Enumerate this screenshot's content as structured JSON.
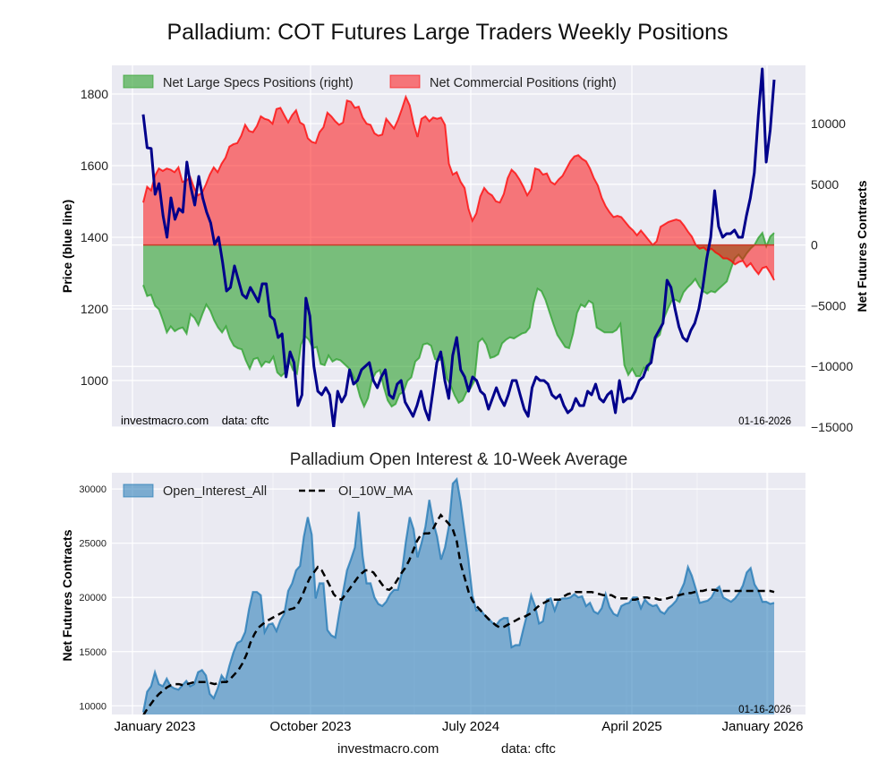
{
  "figure": {
    "title": "Palladium: COT Futures Large Traders Weekly Positions",
    "footer_site": "investmacro.com",
    "footer_data": "data: cftc"
  },
  "chart_data": [
    {
      "type": "area",
      "title": "Palladium: COT Futures Large Traders Weekly Positions",
      "ylabel_left": "Price (blue line)",
      "ylabel_right": "Net Futures Contracts",
      "ylim_left": [
        870,
        1880
      ],
      "ylim_right": [
        -15000,
        14800
      ],
      "yticks_left": [
        "1000",
        "1200",
        "1400",
        "1600",
        "1800"
      ],
      "yticks_right": [
        "−15000",
        "−10000",
        "−5000",
        "0",
        "5000",
        "10000"
      ],
      "ytick_values_left": [
        1000,
        1200,
        1400,
        1600,
        1800
      ],
      "ytick_values_right": [
        -15000,
        -10000,
        -5000,
        0,
        5000,
        10000
      ],
      "xlim": [
        0,
        160
      ],
      "grid": true,
      "legend_position": "top-left",
      "watermark_left": "investmacro.com    data: cftc",
      "watermark_right": "01-16-2026",
      "series": [
        {
          "name": "Net Large Specs Positions (right)",
          "kind": "fill",
          "color": "#2ca02c",
          "axis": "right",
          "values": [
            -3300,
            -4200,
            -4100,
            -5000,
            -5300,
            -6200,
            -7200,
            -6700,
            -7100,
            -6900,
            -6800,
            -7300,
            -5700,
            -6000,
            -6600,
            -5700,
            -4900,
            -5400,
            -6200,
            -6800,
            -7200,
            -6700,
            -7700,
            -8300,
            -8500,
            -8600,
            -9500,
            -10200,
            -9400,
            -9300,
            -10000,
            -9600,
            -9700,
            -9200,
            -10500,
            -10800,
            -10500,
            -9500,
            -10300,
            -10600,
            -8200,
            -7500,
            -7800,
            -8500,
            -8400,
            -9800,
            -9900,
            -9100,
            -9600,
            -9400,
            -9500,
            -9800,
            -10100,
            -10600,
            -11300,
            -12500,
            -13300,
            -12600,
            -11100,
            -10500,
            -10300,
            -11700,
            -12800,
            -13300,
            -13100,
            -12300,
            -12100,
            -11200,
            -10900,
            -9600,
            -9300,
            -8200,
            -8100,
            -8300,
            -9400,
            -9500,
            -9300,
            -11000,
            -11600,
            -12400,
            -13000,
            -12800,
            -12100,
            -11800,
            -11200,
            -8000,
            -7700,
            -8200,
            -9300,
            -9200,
            -9000,
            -8100,
            -7800,
            -7600,
            -7700,
            -7500,
            -7300,
            -7200,
            -6800,
            -4800,
            -3600,
            -3800,
            -4500,
            -5500,
            -6500,
            -7400,
            -7900,
            -8400,
            -8500,
            -7300,
            -5600,
            -4900,
            -5100,
            -4600,
            -4800,
            -6800,
            -7000,
            -7200,
            -7200,
            -7200,
            -7000,
            -6500,
            -9900,
            -10700,
            -10200,
            -10800,
            -10800,
            -10100,
            -10300,
            -8700,
            -7700,
            -7400,
            -6100,
            -5300,
            -4600,
            -4500,
            -4700,
            -3900,
            -3500,
            -3200,
            -2800,
            -3400,
            -3800,
            -4000,
            -3800,
            -3900,
            -3600,
            -3300,
            -3000,
            -2000,
            -1100,
            -800,
            -1200,
            -700,
            -300,
            0,
            600,
            1000,
            -100,
            700,
            1000
          ]
        },
        {
          "name": "Net Commercial Positions (right)",
          "kind": "fill",
          "color": "#ff0000",
          "axis": "right",
          "values": [
            3500,
            4800,
            4500,
            5700,
            6300,
            6100,
            6300,
            6200,
            6000,
            6400,
            5200,
            5300,
            5600,
            4700,
            4100,
            4300,
            5000,
            5800,
            6400,
            6000,
            6700,
            7200,
            8100,
            8300,
            8400,
            9000,
            9900,
            9400,
            9300,
            9800,
            10600,
            10400,
            10300,
            10000,
            11200,
            11300,
            10700,
            10100,
            10700,
            11100,
            10100,
            9900,
            8800,
            8500,
            8400,
            9300,
            9700,
            10900,
            10600,
            10200,
            9900,
            10100,
            11900,
            11800,
            11300,
            11400,
            10500,
            10000,
            9900,
            9200,
            9000,
            9100,
            10400,
            10000,
            9600,
            10300,
            11200,
            12200,
            11500,
            10000,
            8900,
            10400,
            10600,
            10200,
            10500,
            10400,
            10500,
            9900,
            6700,
            5800,
            6000,
            5200,
            4700,
            3000,
            2000,
            2600,
            4000,
            4700,
            4300,
            4100,
            3600,
            3500,
            4200,
            5500,
            6200,
            5900,
            5400,
            4800,
            4100,
            4600,
            6300,
            6200,
            5800,
            5900,
            5200,
            5000,
            5400,
            5700,
            6300,
            6900,
            7300,
            7400,
            7100,
            6900,
            6300,
            5500,
            4900,
            3900,
            3200,
            2700,
            2300,
            2400,
            2300,
            1900,
            1500,
            1200,
            800,
            1200,
            800,
            400,
            0,
            300,
            1500,
            1700,
            1900,
            2000,
            2100,
            2000,
            1600,
            1100,
            700,
            0,
            -300,
            -200,
            -500,
            -300,
            -600,
            -800,
            -1100,
            -1100,
            -1300,
            -1600,
            -1400,
            -1300,
            -1800,
            -1500,
            -2000,
            -2400,
            -1900,
            -1800,
            -2300,
            -2900
          ]
        },
        {
          "name": "Price (blue line)",
          "kind": "line",
          "color": "#00008b",
          "axis": "left",
          "values": [
            1743,
            1650,
            1648,
            1520,
            1550,
            1460,
            1400,
            1510,
            1450,
            1480,
            1470,
            1610,
            1540,
            1490,
            1570,
            1510,
            1470,
            1440,
            1380,
            1400,
            1330,
            1250,
            1260,
            1320,
            1280,
            1240,
            1230,
            1260,
            1240,
            1220,
            1270,
            1270,
            1180,
            1170,
            1120,
            1130,
            1010,
            1080,
            1050,
            930,
            960,
            1230,
            1180,
            1040,
            970,
            960,
            980,
            960,
            870,
            970,
            940,
            960,
            1030,
            990,
            1000,
            1030,
            1040,
            1050,
            1000,
            980,
            1010,
            1030,
            960,
            950,
            990,
            1000,
            940,
            920,
            900,
            930,
            970,
            920,
            890,
            970,
            1050,
            1080,
            1000,
            950,
            1070,
            1120,
            1030,
            1010,
            970,
            1010,
            1000,
            970,
            960,
            920,
            950,
            980,
            950,
            930,
            960,
            1000,
            1000,
            960,
            920,
            900,
            980,
            1010,
            1000,
            1000,
            990,
            960,
            950,
            960,
            930,
            910,
            920,
            950,
            930,
            930,
            970,
            960,
            990,
            950,
            940,
            960,
            970,
            910,
            1000,
            940,
            950,
            950,
            970,
            1000,
            1010,
            1040,
            1050,
            1120,
            1140,
            1160,
            1280,
            1260,
            1200,
            1150,
            1120,
            1110,
            1140,
            1160,
            1200,
            1260,
            1340,
            1400,
            1530,
            1430,
            1400,
            1410,
            1410,
            1420,
            1400,
            1400,
            1460,
            1510,
            1580,
            1740,
            1870,
            1610,
            1700,
            1840
          ]
        }
      ]
    },
    {
      "type": "area",
      "title": "Palladium Open Interest & 10-Week Average",
      "ylabel": "Net Futures Contracts",
      "ylim": [
        9200,
        31500
      ],
      "yticks": [
        "10000",
        "15000",
        "20000",
        "25000",
        "30000"
      ],
      "ytick_values": [
        10000,
        15000,
        20000,
        25000,
        30000
      ],
      "xticks": [
        "January 2023",
        "October 2023",
        "July 2024",
        "April 2025",
        "January 2026"
      ],
      "xtick_positions": [
        0,
        40,
        80,
        120,
        160
      ],
      "xlim": [
        0,
        160
      ],
      "grid": true,
      "legend_position": "top-left",
      "watermark_right": "01-16-2026",
      "series": [
        {
          "name": "Open_Interest_All",
          "kind": "fill",
          "color": "#1f77b4",
          "values": [
            9400,
            11300,
            11800,
            13100,
            12000,
            11800,
            12500,
            11800,
            11600,
            11500,
            11900,
            12300,
            11800,
            12000,
            13100,
            13300,
            12800,
            11100,
            10700,
            11600,
            12800,
            12300,
            13700,
            14900,
            15800,
            16000,
            16800,
            18900,
            20500,
            20500,
            20200,
            16800,
            17500,
            17600,
            16900,
            17900,
            18500,
            20600,
            21300,
            22500,
            22900,
            25600,
            27400,
            25800,
            19900,
            21300,
            21300,
            17000,
            16500,
            16300,
            18500,
            20500,
            22500,
            23500,
            24600,
            27900,
            23800,
            21300,
            21300,
            20000,
            19400,
            19200,
            19600,
            20300,
            20700,
            20700,
            22300,
            25100,
            27400,
            26300,
            23700,
            25000,
            26500,
            29000,
            27000,
            25600,
            23500,
            24600,
            26600,
            30500,
            30900,
            28800,
            26100,
            23500,
            20200,
            18800,
            18900,
            18400,
            18100,
            17700,
            17400,
            17900,
            18100,
            18100,
            15400,
            15600,
            15600,
            17100,
            18500,
            20200,
            19200,
            17600,
            17800,
            19800,
            19900,
            18800,
            19800,
            19900,
            19900,
            20000,
            20300,
            20000,
            20100,
            19200,
            19500,
            18700,
            18500,
            19000,
            20300,
            19100,
            18500,
            18300,
            19200,
            19400,
            19500,
            20000,
            20000,
            19000,
            19800,
            19400,
            19200,
            19300,
            18700,
            18500,
            19000,
            19300,
            19700,
            20500,
            21300,
            22800,
            22000,
            20800,
            19500,
            19600,
            19700,
            20000,
            20700,
            21000,
            20000,
            19800,
            19600,
            19900,
            20400,
            21100,
            22300,
            22700,
            21200,
            20600,
            19600,
            19600,
            19400,
            19500
          ]
        },
        {
          "name": "OI_10W_MA",
          "kind": "line-dashed",
          "color": "#000000",
          "values": [
            9100,
            9700,
            10200,
            10700,
            11100,
            11400,
            11700,
            11900,
            12000,
            12000,
            11900,
            12000,
            12100,
            12200,
            12200,
            12200,
            12200,
            12100,
            12000,
            12100,
            12200,
            12200,
            12500,
            12900,
            13300,
            13900,
            14700,
            15800,
            16600,
            17200,
            17500,
            17800,
            18000,
            18200,
            18400,
            18600,
            18800,
            18900,
            19000,
            19400,
            20100,
            21000,
            21800,
            22300,
            22800,
            22500,
            21800,
            21100,
            20300,
            19900,
            19800,
            20300,
            20800,
            21300,
            21800,
            22200,
            22500,
            22500,
            22300,
            21800,
            21300,
            20800,
            20700,
            21000,
            21600,
            22200,
            22700,
            23400,
            24300,
            25200,
            25800,
            25900,
            25900,
            26300,
            27000,
            27600,
            27200,
            26800,
            26300,
            25200,
            23100,
            21800,
            20500,
            19700,
            19200,
            18800,
            18400,
            18000,
            17700,
            17400,
            17200,
            17300,
            17500,
            17700,
            17900,
            18100,
            18200,
            18400,
            18600,
            19000,
            19300,
            19500,
            19700,
            19800,
            19800,
            19800,
            20100,
            20300,
            20400,
            20500,
            20500,
            20500,
            20500,
            20500,
            20400,
            20300,
            20200,
            20200,
            20200,
            20000,
            19900,
            19900,
            19900,
            19800,
            19800,
            19900,
            20000,
            20000,
            19900,
            19900,
            19800,
            19800,
            19900,
            20000,
            20100,
            20200,
            20300,
            20400,
            20400,
            20500,
            20600,
            20600,
            20700,
            20700,
            20700,
            20600,
            20600,
            20600,
            20600,
            20600,
            20600,
            20600,
            20600,
            20600,
            20600,
            20600,
            20600,
            20600,
            20600,
            20500
          ]
        }
      ]
    }
  ]
}
